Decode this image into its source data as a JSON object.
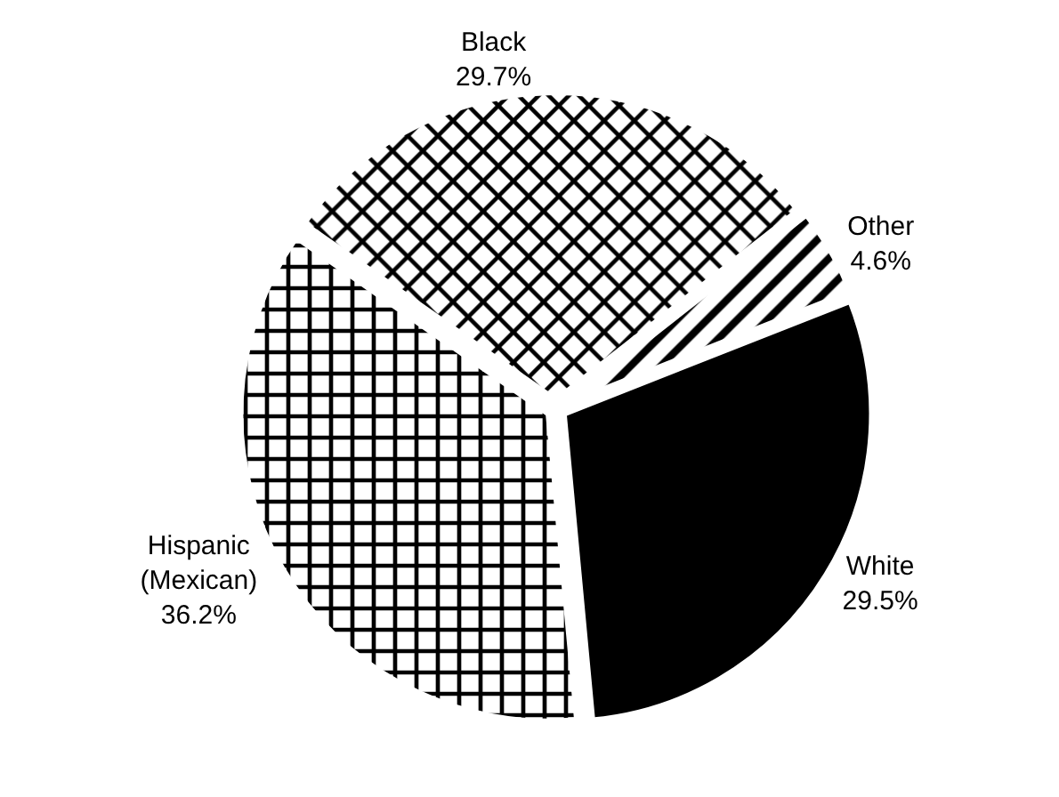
{
  "chart_data": {
    "type": "pie",
    "categories": [
      "Black",
      "Other",
      "White",
      "Hispanic (Mexican)"
    ],
    "values": [
      29.7,
      4.6,
      29.5,
      36.2
    ],
    "value_labels": [
      "29.7%",
      "4.6%",
      "29.5%",
      "36.2%"
    ],
    "colors": [
      "#ffffff",
      "#ffffff",
      "#000000",
      "#ffffff"
    ],
    "legend": false
  }
}
